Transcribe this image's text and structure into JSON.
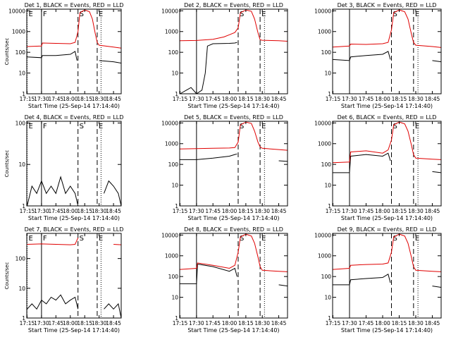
{
  "chart_data": [
    {
      "type": "line",
      "title": "Det 1, BLACK = Events, RED = LLD",
      "xlabel": "Start Time (25-Sep-14 17:14:40)",
      "ylabel": "Counts/sec",
      "x_ticks": [
        "17:15",
        "17:30",
        "17:45",
        "18:00",
        "18:15",
        "18:30",
        "18:45"
      ],
      "y_ticks": [
        "1",
        "10",
        "100",
        "1000",
        "10000"
      ],
      "xlim": [
        "17:14:40",
        "18:53"
      ],
      "ylim": [
        1,
        12000
      ],
      "y_scale": "log",
      "markers": [
        {
          "label": "E",
          "time": "17:15",
          "style": "dotted"
        },
        {
          "label": "F",
          "time": "17:30",
          "style": "solid"
        },
        {
          "label": "S",
          "time": "18:08",
          "style": "dashed"
        },
        {
          "label": "E",
          "time": "18:28",
          "style": "dashed"
        },
        {
          "label": "",
          "time": "18:32",
          "style": "dotted"
        }
      ],
      "series": [
        {
          "color": "#000000",
          "x": [
            "17:15",
            "17:30",
            "17:31",
            "17:45",
            "18:00",
            "18:05",
            "18:07",
            "18:08",
            "18:30",
            "18:45",
            "18:53"
          ],
          "y": [
            60,
            55,
            70,
            70,
            80,
            110,
            40,
            null,
            40,
            35,
            30
          ]
        },
        {
          "color": "#e00000",
          "x": [
            "17:15",
            "17:30",
            "17:31",
            "17:45",
            "18:00",
            "18:05",
            "18:08",
            "18:10",
            "18:15",
            "18:20",
            "18:23",
            "18:26",
            "18:28",
            "18:30",
            "18:45",
            "18:53"
          ],
          "y": [
            190,
            200,
            280,
            270,
            260,
            300,
            1000,
            8000,
            11000,
            9000,
            4000,
            800,
            300,
            220,
            180,
            160
          ]
        }
      ]
    },
    {
      "type": "line",
      "title": "Det 2, BLACK = Events, RED = LLD",
      "xlabel": "Start Time (25-Sep-14 17:14:40)",
      "ylabel": "",
      "x_ticks": [
        "17:15",
        "17:30",
        "17:45",
        "18:00",
        "18:15",
        "18:30",
        "18:45"
      ],
      "y_ticks": [
        "1",
        "10",
        "100",
        "1000",
        "10000"
      ],
      "xlim": [
        "17:14:40",
        "18:53"
      ],
      "ylim": [
        1,
        12000
      ],
      "y_scale": "log",
      "markers": [
        {
          "label": "",
          "time": "17:30",
          "style": "solid"
        },
        {
          "label": "S",
          "time": "18:08",
          "style": "dashed"
        },
        {
          "label": "E",
          "time": "18:28",
          "style": "dashed"
        },
        {
          "label": "",
          "time": "18:32",
          "style": "dotted"
        }
      ],
      "series": [
        {
          "color": "#000000",
          "x": [
            "17:15",
            "17:25",
            "17:30",
            "17:35",
            "17:38",
            "17:40",
            "17:45",
            "18:00",
            "18:05",
            "18:07",
            "18:30",
            "18:45"
          ],
          "y": [
            1,
            2,
            1,
            1.5,
            10,
            200,
            260,
            270,
            280,
            300,
            null,
            1
          ]
        },
        {
          "color": "#e00000",
          "x": [
            "17:15",
            "17:30",
            "17:45",
            "17:55",
            "18:00",
            "18:05",
            "18:08",
            "18:10",
            "18:15",
            "18:20",
            "18:23",
            "18:26",
            "18:28",
            "18:30",
            "18:45",
            "18:53"
          ],
          "y": [
            360,
            370,
            420,
            550,
            700,
            900,
            1500,
            8000,
            11000,
            9500,
            4000,
            900,
            400,
            380,
            360,
            340
          ]
        }
      ]
    },
    {
      "type": "line",
      "title": "Det 3, BLACK = Events, RED = LLD",
      "xlabel": "Start Time (25-Sep-14 17:14:40)",
      "ylabel": "",
      "x_ticks": [
        "17:15",
        "17:30",
        "17:45",
        "18:00",
        "18:15",
        "18:30",
        "18:45"
      ],
      "y_ticks": [
        "1",
        "10",
        "100",
        "1000",
        "10000"
      ],
      "xlim": [
        "17:14:40",
        "18:53"
      ],
      "ylim": [
        1,
        12000
      ],
      "y_scale": "log",
      "markers": [
        {
          "label": "",
          "time": "17:30",
          "style": "solid"
        },
        {
          "label": "S",
          "time": "18:08",
          "style": "dashed"
        },
        {
          "label": "E",
          "time": "18:28",
          "style": "dashed"
        },
        {
          "label": "",
          "time": "18:32",
          "style": "dotted"
        }
      ],
      "series": [
        {
          "color": "#000000",
          "x": [
            "17:15",
            "17:30",
            "17:31",
            "17:45",
            "18:00",
            "18:05",
            "18:07",
            "18:30",
            "18:45",
            "18:53"
          ],
          "y": [
            45,
            40,
            60,
            70,
            80,
            110,
            45,
            null,
            40,
            35
          ]
        },
        {
          "color": "#e00000",
          "x": [
            "17:15",
            "17:30",
            "17:31",
            "17:45",
            "18:00",
            "18:05",
            "18:08",
            "18:10",
            "18:15",
            "18:20",
            "18:23",
            "18:26",
            "18:28",
            "18:30",
            "18:45",
            "18:53"
          ],
          "y": [
            180,
            200,
            250,
            240,
            260,
            300,
            1200,
            8000,
            11000,
            9000,
            4000,
            800,
            300,
            220,
            190,
            170
          ]
        }
      ]
    },
    {
      "type": "line",
      "title": "Det 4, BLACK = Events, RED = LLD",
      "xlabel": "Start Time (25-Sep-14 17:14:40)",
      "ylabel": "Counts/sec",
      "x_ticks": [
        "17:15",
        "17:30",
        "17:45",
        "18:00",
        "18:15",
        "18:30",
        "18:45"
      ],
      "y_ticks": [
        "1",
        "10",
        "100"
      ],
      "xlim": [
        "17:14:40",
        "18:53"
      ],
      "ylim": [
        1,
        110
      ],
      "y_scale": "log",
      "markers": [
        {
          "label": "E",
          "time": "17:15",
          "style": "dotted"
        },
        {
          "label": "F",
          "time": "17:30",
          "style": "solid"
        },
        {
          "label": "S",
          "time": "18:08",
          "style": "dashed"
        },
        {
          "label": "E",
          "time": "18:28",
          "style": "dashed"
        },
        {
          "label": "",
          "time": "18:32",
          "style": "dotted"
        }
      ],
      "series": [
        {
          "color": "#000000",
          "x": [
            "17:15",
            "17:20",
            "17:25",
            "17:30",
            "17:35",
            "17:40",
            "17:45",
            "17:50",
            "17:55",
            "18:00",
            "18:05",
            "18:08",
            "18:30",
            "18:35",
            "18:40",
            "18:45",
            "18:50",
            "18:53"
          ],
          "y": [
            1,
            3,
            2,
            4,
            2,
            3,
            2,
            5,
            2,
            3,
            2,
            1,
            null,
            2,
            4,
            3,
            2,
            1
          ]
        }
      ]
    },
    {
      "type": "line",
      "title": "Det 5, BLACK = Events, RED = LLD",
      "xlabel": "Start Time (25-Sep-14 17:14:40)",
      "ylabel": "",
      "x_ticks": [
        "17:15",
        "17:30",
        "17:45",
        "18:00",
        "18:15",
        "18:30",
        "18:45"
      ],
      "y_ticks": [
        "1",
        "10",
        "100",
        "1000",
        "10000"
      ],
      "xlim": [
        "17:14:40",
        "18:53"
      ],
      "ylim": [
        1,
        12000
      ],
      "y_scale": "log",
      "markers": [
        {
          "label": "",
          "time": "17:30",
          "style": "solid"
        },
        {
          "label": "S",
          "time": "18:08",
          "style": "dashed"
        },
        {
          "label": "E",
          "time": "18:28",
          "style": "dashed"
        },
        {
          "label": "",
          "time": "18:32",
          "style": "dotted"
        }
      ],
      "series": [
        {
          "color": "#000000",
          "x": [
            "17:15",
            "17:30",
            "17:45",
            "18:00",
            "18:05",
            "18:07",
            "18:30",
            "18:45",
            "18:53"
          ],
          "y": [
            170,
            170,
            200,
            250,
            300,
            320,
            null,
            150,
            140
          ]
        },
        {
          "color": "#e00000",
          "x": [
            "17:15",
            "17:30",
            "17:45",
            "18:00",
            "18:05",
            "18:08",
            "18:10",
            "18:15",
            "18:20",
            "18:23",
            "18:26",
            "18:28",
            "18:30",
            "18:45",
            "18:53"
          ],
          "y": [
            560,
            580,
            600,
            620,
            650,
            1200,
            8000,
            11000,
            9500,
            4000,
            1200,
            700,
            600,
            520,
            480
          ]
        }
      ]
    },
    {
      "type": "line",
      "title": "Det 6, BLACK = Events, RED = LLD",
      "xlabel": "Start Time (25-Sep-14 17:14:40)",
      "ylabel": "",
      "x_ticks": [
        "17:15",
        "17:30",
        "17:45",
        "18:00",
        "18:15",
        "18:30",
        "18:45"
      ],
      "y_ticks": [
        "1",
        "10",
        "100",
        "1000",
        "10000"
      ],
      "xlim": [
        "17:14:40",
        "18:53"
      ],
      "ylim": [
        1,
        12000
      ],
      "y_scale": "log",
      "markers": [
        {
          "label": "",
          "time": "17:30",
          "style": "solid"
        },
        {
          "label": "S",
          "time": "18:08",
          "style": "dashed"
        },
        {
          "label": "E",
          "time": "18:28",
          "style": "dashed"
        },
        {
          "label": "",
          "time": "18:32",
          "style": "dotted"
        }
      ],
      "series": [
        {
          "color": "#000000",
          "x": [
            "17:15",
            "17:30",
            "17:31",
            "17:45",
            "18:00",
            "18:05",
            "18:07",
            "18:30",
            "18:45",
            "18:53"
          ],
          "y": [
            40,
            40,
            250,
            300,
            250,
            350,
            150,
            null,
            45,
            40
          ]
        },
        {
          "color": "#e00000",
          "x": [
            "17:15",
            "17:30",
            "17:31",
            "17:45",
            "18:00",
            "18:05",
            "18:08",
            "18:10",
            "18:15",
            "18:20",
            "18:23",
            "18:26",
            "18:28",
            "18:30",
            "18:45",
            "18:53"
          ],
          "y": [
            120,
            130,
            400,
            450,
            350,
            500,
            1500,
            8000,
            11000,
            9000,
            4000,
            900,
            300,
            200,
            180,
            170
          ]
        }
      ]
    },
    {
      "type": "line",
      "title": "Det 7, BLACK = Events, RED = LLD",
      "xlabel": "Start Time (25-Sep-14 17:14:40)",
      "ylabel": "Counts/sec",
      "x_ticks": [
        "17:15",
        "17:30",
        "17:45",
        "18:00",
        "18:15",
        "18:30",
        "18:45"
      ],
      "y_ticks": [
        "1",
        "10",
        "100"
      ],
      "xlim": [
        "17:14:40",
        "18:53"
      ],
      "ylim": [
        1,
        700
      ],
      "y_scale": "log",
      "markers": [
        {
          "label": "E",
          "time": "17:15",
          "style": "dotted"
        },
        {
          "label": "F",
          "time": "17:30",
          "style": "solid"
        },
        {
          "label": "S",
          "time": "18:08",
          "style": "dashed"
        },
        {
          "label": "E",
          "time": "18:28",
          "style": "dashed"
        },
        {
          "label": "",
          "time": "18:32",
          "style": "dotted"
        }
      ],
      "series": [
        {
          "color": "#000000",
          "x": [
            "17:15",
            "17:20",
            "17:25",
            "17:30",
            "17:35",
            "17:40",
            "17:45",
            "17:50",
            "17:55",
            "18:00",
            "18:05",
            "18:08",
            "18:30",
            "18:35",
            "18:40",
            "18:45",
            "18:50",
            "18:53"
          ],
          "y": [
            2,
            3,
            2,
            4,
            3,
            5,
            4,
            6,
            3,
            4,
            5,
            2,
            null,
            2,
            3,
            2,
            3,
            1
          ]
        },
        {
          "color": "#e00000",
          "x": [
            "17:15",
            "17:30",
            "17:45",
            "18:00",
            "18:05",
            "18:08",
            "18:30",
            "18:45",
            "18:53"
          ],
          "y": [
            300,
            310,
            300,
            290,
            300,
            500,
            null,
            300,
            290
          ]
        }
      ]
    },
    {
      "type": "line",
      "title": "Det 8, BLACK = Events, RED = LLD",
      "xlabel": "Start Time (25-Sep-14 17:14:40)",
      "ylabel": "",
      "x_ticks": [
        "17:15",
        "17:30",
        "17:45",
        "18:00",
        "18:15",
        "18:30",
        "18:45"
      ],
      "y_ticks": [
        "1",
        "10",
        "100",
        "1000",
        "10000"
      ],
      "xlim": [
        "17:14:40",
        "18:53"
      ],
      "ylim": [
        1,
        12000
      ],
      "y_scale": "log",
      "markers": [
        {
          "label": "",
          "time": "17:30",
          "style": "solid"
        },
        {
          "label": "S",
          "time": "18:08",
          "style": "dashed"
        },
        {
          "label": "E",
          "time": "18:28",
          "style": "dashed"
        },
        {
          "label": "",
          "time": "18:32",
          "style": "dotted"
        }
      ],
      "series": [
        {
          "color": "#000000",
          "x": [
            "17:15",
            "17:30",
            "17:31",
            "17:45",
            "18:00",
            "18:05",
            "18:07",
            "18:30",
            "18:45",
            "18:53"
          ],
          "y": [
            45,
            45,
            400,
            300,
            180,
            250,
            100,
            null,
            40,
            35
          ]
        },
        {
          "color": "#e00000",
          "x": [
            "17:15",
            "17:30",
            "17:31",
            "17:45",
            "18:00",
            "18:05",
            "18:08",
            "18:10",
            "18:15",
            "18:20",
            "18:23",
            "18:26",
            "18:28",
            "18:30",
            "18:45",
            "18:53"
          ],
          "y": [
            220,
            250,
            450,
            350,
            250,
            350,
            1500,
            8000,
            11000,
            9000,
            4000,
            900,
            300,
            200,
            180,
            170
          ]
        }
      ]
    },
    {
      "type": "line",
      "title": "Det 9, BLACK = Events, RED = LLD",
      "xlabel": "Start Time (25-Sep-14 17:14:40)",
      "ylabel": "",
      "x_ticks": [
        "17:15",
        "17:30",
        "17:45",
        "18:00",
        "18:15",
        "18:30",
        "18:45"
      ],
      "y_ticks": [
        "1",
        "10",
        "100",
        "1000",
        "10000"
      ],
      "xlim": [
        "17:14:40",
        "18:53"
      ],
      "ylim": [
        1,
        12000
      ],
      "y_scale": "log",
      "markers": [
        {
          "label": "",
          "time": "17:30",
          "style": "solid"
        },
        {
          "label": "S",
          "time": "18:08",
          "style": "dashed"
        },
        {
          "label": "E",
          "time": "18:28",
          "style": "dashed"
        },
        {
          "label": "",
          "time": "18:32",
          "style": "dotted"
        }
      ],
      "series": [
        {
          "color": "#000000",
          "x": [
            "17:15",
            "17:30",
            "17:31",
            "17:45",
            "18:00",
            "18:05",
            "18:07",
            "18:30",
            "18:45",
            "18:53"
          ],
          "y": [
            40,
            40,
            70,
            80,
            90,
            130,
            50,
            null,
            35,
            30
          ]
        },
        {
          "color": "#e00000",
          "x": [
            "17:15",
            "17:30",
            "17:31",
            "17:45",
            "18:00",
            "18:05",
            "18:08",
            "18:10",
            "18:15",
            "18:20",
            "18:23",
            "18:26",
            "18:28",
            "18:30",
            "18:45",
            "18:53"
          ],
          "y": [
            220,
            250,
            350,
            380,
            400,
            450,
            1500,
            8000,
            11000,
            9000,
            4000,
            900,
            300,
            200,
            180,
            170
          ]
        }
      ]
    }
  ]
}
